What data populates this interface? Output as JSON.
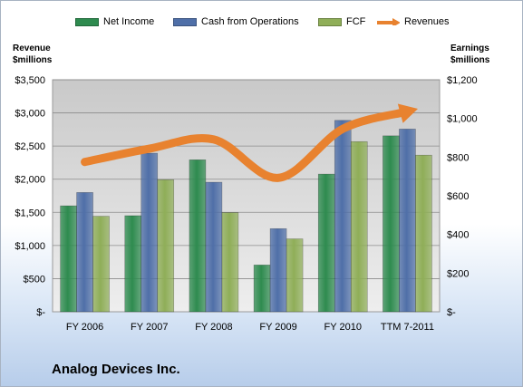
{
  "legend": {
    "net_income": "Net Income",
    "cash_ops": "Cash from Operations",
    "fcf": "FCF",
    "revenues": "Revenues"
  },
  "axes": {
    "left_title_line1": "Revenue",
    "left_title_line2": "$millions",
    "right_title_line1": "Earnings",
    "right_title_line2": "$millions"
  },
  "company": "Analog Devices Inc.",
  "colors": {
    "net_income": "#2e8b4f",
    "cash_ops": "#4f6fa8",
    "fcf": "#8fae58",
    "revenues": "#e8822f",
    "plot_bg": "#dcdcdc"
  },
  "chart_data": {
    "type": "bar",
    "categories": [
      "FY 2006",
      "FY 2007",
      "FY 2008",
      "FY 2009",
      "FY 2010",
      "TTM 7-2011"
    ],
    "series": [
      {
        "name": "Net Income",
        "axis": "right",
        "values": [
          548,
          497,
          786,
          242,
          712,
          910
        ]
      },
      {
        "name": "Cash from Operations",
        "axis": "right",
        "values": [
          617,
          820,
          670,
          430,
          990,
          945
        ]
      },
      {
        "name": "FCF",
        "axis": "right",
        "values": [
          494,
          683,
          513,
          377,
          880,
          810
        ]
      },
      {
        "name": "Revenues",
        "type": "line",
        "axis": "left",
        "values": [
          2260,
          2460,
          2600,
          2020,
          2760,
          3020
        ]
      }
    ],
    "y_left": {
      "min": 0,
      "max": 3500,
      "ticks": [
        "$-",
        "$500",
        "$1,000",
        "$1,500",
        "$2,000",
        "$2,500",
        "$3,000",
        "$3,500"
      ]
    },
    "y_right": {
      "min": 0,
      "max": 1200,
      "ticks": [
        "$-",
        "$200",
        "$400",
        "$600",
        "$800",
        "$1,000",
        "$1,200"
      ]
    },
    "grid": true,
    "legend_position": "top"
  }
}
